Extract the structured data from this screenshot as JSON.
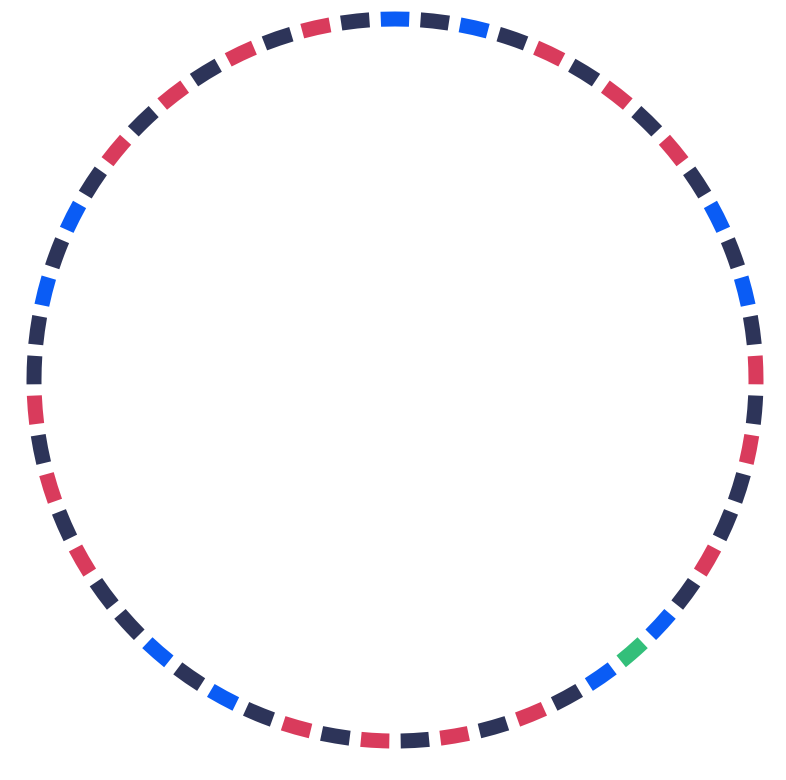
{
  "ring": {
    "segment_count": 57,
    "palette": {
      "navy": "#2d3459",
      "red": "#d93b5c",
      "blue": "#0a5cf5",
      "green": "#33bf7a"
    },
    "segments": [
      "blue",
      "navy",
      "blue",
      "navy",
      "red",
      "navy",
      "red",
      "navy",
      "red",
      "navy",
      "blue",
      "navy",
      "blue",
      "navy",
      "red",
      "navy",
      "red",
      "navy",
      "navy",
      "red",
      "navy",
      "blue",
      "green",
      "blue",
      "navy",
      "red",
      "navy",
      "red",
      "navy",
      "red",
      "navy",
      "red",
      "navy",
      "blue",
      "navy",
      "blue",
      "navy",
      "navy",
      "red",
      "navy",
      "red",
      "navy",
      "red",
      "navy",
      "navy",
      "blue",
      "navy",
      "blue",
      "navy",
      "red",
      "navy",
      "red",
      "navy",
      "red",
      "navy",
      "red",
      "navy"
    ]
  }
}
